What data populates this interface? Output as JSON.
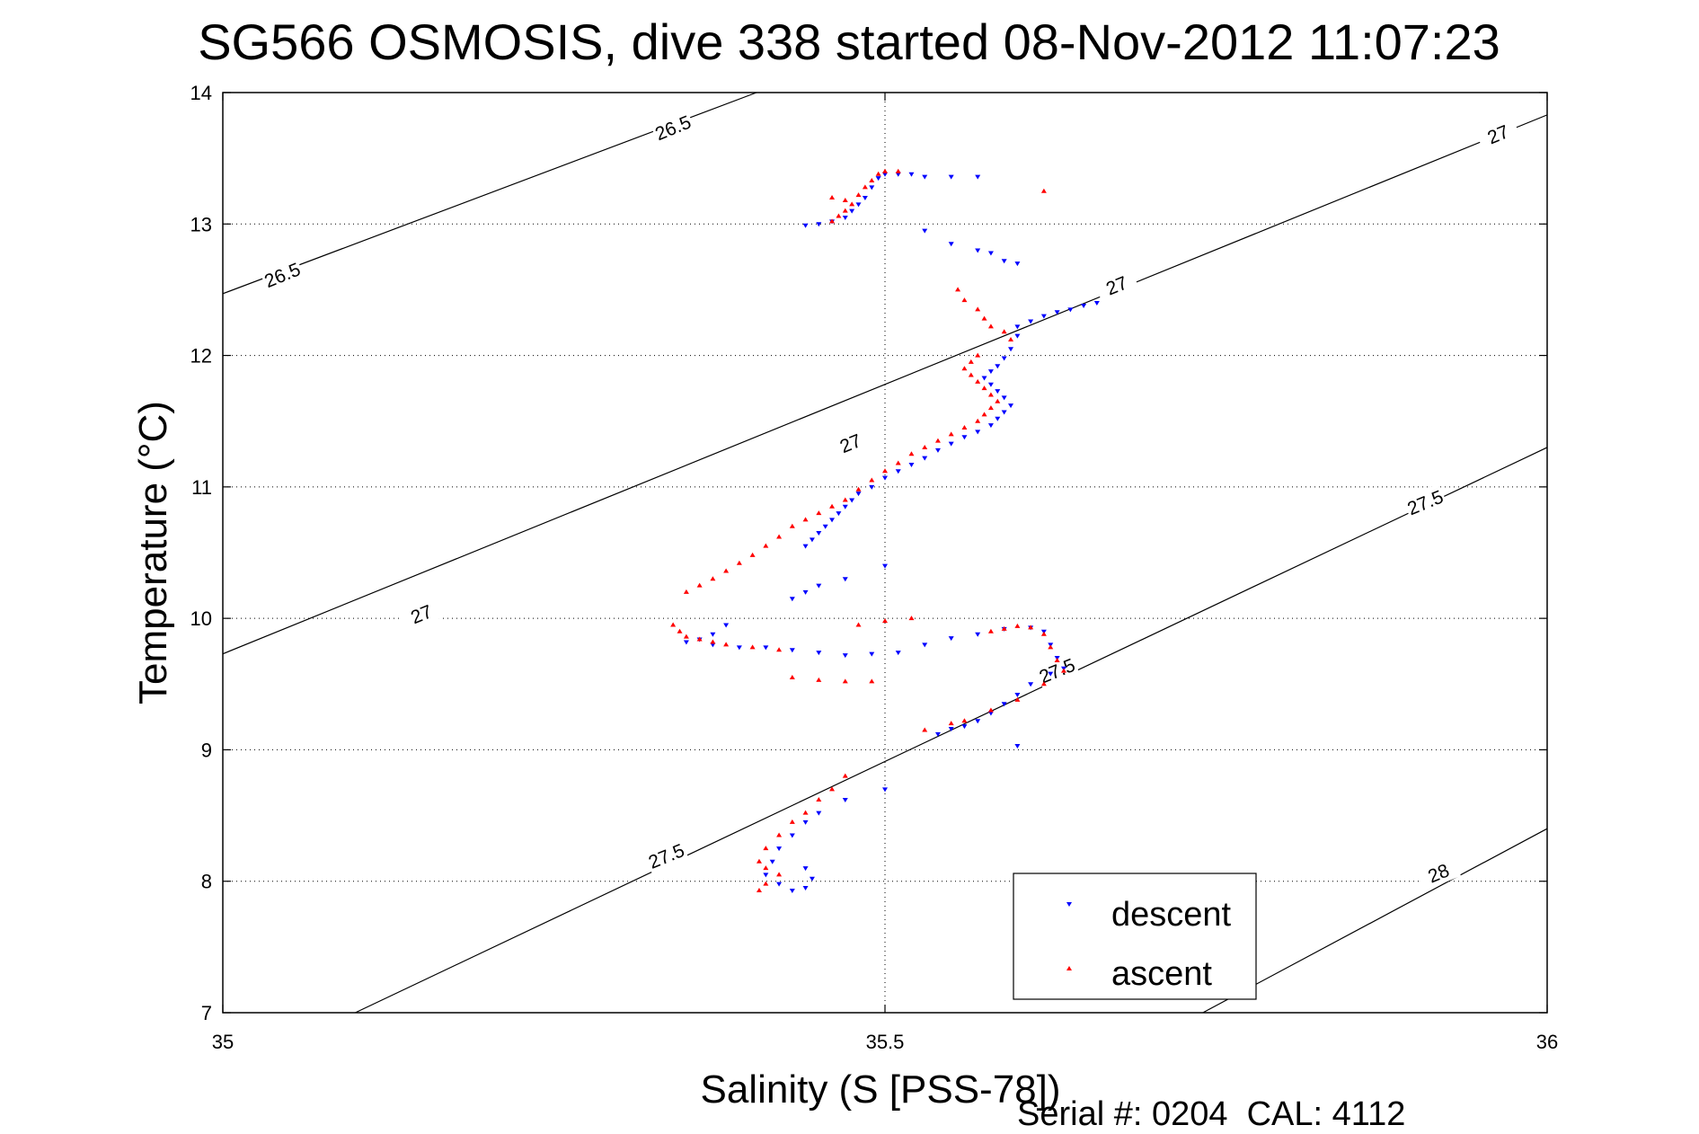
{
  "chart_data": {
    "type": "scatter",
    "title": "SG566 OSMOSIS, dive 338 started 08-Nov-2012 11:07:23",
    "xlabel": "Salinity (S [PSS-78])",
    "ylabel": "Temperature (°C)",
    "xlim": [
      35,
      36
    ],
    "ylim": [
      7,
      14
    ],
    "x_ticks": [
      "35",
      "35.5",
      "36"
    ],
    "y_ticks": [
      "7",
      "8",
      "9",
      "10",
      "11",
      "12",
      "13",
      "14"
    ],
    "grid": "dotted",
    "legend_placement": "bottom-right",
    "footnote": "Serial #: 0204  CAL: 4112",
    "density_contours": [
      {
        "label": "26.5",
        "x0": 35.0,
        "y0": 12.47,
        "x1": 35.403,
        "y1": 14.0
      },
      {
        "label": "27",
        "x0": 35.0,
        "y0": 9.73,
        "x1": 36.0,
        "y1": 13.83
      },
      {
        "label": "27.5",
        "x0": 35.1,
        "y0": 7.0,
        "x1": 36.0,
        "y1": 11.3
      },
      {
        "label": "28",
        "x0": 35.74,
        "y0": 7.0,
        "x1": 36.0,
        "y1": 8.4
      }
    ],
    "contour_labels": [
      {
        "text": "26.5",
        "x": 35.34,
        "y": 13.73
      },
      {
        "text": "26.5",
        "x": 35.045,
        "y": 12.61
      },
      {
        "text": "27",
        "x": 35.474,
        "y": 11.33
      },
      {
        "text": "27",
        "x": 35.15,
        "y": 10.03
      },
      {
        "text": "27",
        "x": 35.675,
        "y": 12.53
      },
      {
        "text": "27",
        "x": 35.963,
        "y": 13.68
      },
      {
        "text": "27.5",
        "x": 35.335,
        "y": 8.19
      },
      {
        "text": "27.5",
        "x": 35.63,
        "y": 9.6
      },
      {
        "text": "27.5",
        "x": 35.908,
        "y": 10.88
      },
      {
        "text": "28",
        "x": 35.918,
        "y": 8.06
      }
    ],
    "series": [
      {
        "name": "descent",
        "color": "#0000ff",
        "marker": "triangle-down",
        "points": [
          [
            35.44,
            12.99
          ],
          [
            35.45,
            13.0
          ],
          [
            35.46,
            13.02
          ],
          [
            35.47,
            13.05
          ],
          [
            35.475,
            13.1
          ],
          [
            35.48,
            13.15
          ],
          [
            35.485,
            13.2
          ],
          [
            35.49,
            13.28
          ],
          [
            35.495,
            13.35
          ],
          [
            35.5,
            13.38
          ],
          [
            35.51,
            13.38
          ],
          [
            35.52,
            13.38
          ],
          [
            35.53,
            13.36
          ],
          [
            35.55,
            13.36
          ],
          [
            35.57,
            13.36
          ],
          [
            35.53,
            12.95
          ],
          [
            35.55,
            12.85
          ],
          [
            35.57,
            12.8
          ],
          [
            35.58,
            12.78
          ],
          [
            35.59,
            12.72
          ],
          [
            35.6,
            12.7
          ],
          [
            35.66,
            12.4
          ],
          [
            35.65,
            12.38
          ],
          [
            35.64,
            12.35
          ],
          [
            35.63,
            12.33
          ],
          [
            35.62,
            12.3
          ],
          [
            35.61,
            12.26
          ],
          [
            35.6,
            12.22
          ],
          [
            35.6,
            12.15
          ],
          [
            35.595,
            12.05
          ],
          [
            35.59,
            11.98
          ],
          [
            35.585,
            11.92
          ],
          [
            35.58,
            11.88
          ],
          [
            35.575,
            11.83
          ],
          [
            35.58,
            11.78
          ],
          [
            35.585,
            11.73
          ],
          [
            35.59,
            11.68
          ],
          [
            35.595,
            11.62
          ],
          [
            35.59,
            11.57
          ],
          [
            35.585,
            11.52
          ],
          [
            35.58,
            11.47
          ],
          [
            35.57,
            11.42
          ],
          [
            35.56,
            11.38
          ],
          [
            35.55,
            11.33
          ],
          [
            35.54,
            11.28
          ],
          [
            35.53,
            11.22
          ],
          [
            35.52,
            11.17
          ],
          [
            35.51,
            11.12
          ],
          [
            35.5,
            11.07
          ],
          [
            35.49,
            11.0
          ],
          [
            35.48,
            10.95
          ],
          [
            35.475,
            10.9
          ],
          [
            35.47,
            10.85
          ],
          [
            35.465,
            10.8
          ],
          [
            35.46,
            10.75
          ],
          [
            35.455,
            10.7
          ],
          [
            35.45,
            10.65
          ],
          [
            35.445,
            10.6
          ],
          [
            35.44,
            10.55
          ],
          [
            35.5,
            10.4
          ],
          [
            35.47,
            10.3
          ],
          [
            35.45,
            10.25
          ],
          [
            35.44,
            10.2
          ],
          [
            35.43,
            10.15
          ],
          [
            35.38,
            9.95
          ],
          [
            35.37,
            9.88
          ],
          [
            35.36,
            9.84
          ],
          [
            35.35,
            9.82
          ],
          [
            35.37,
            9.8
          ],
          [
            35.39,
            9.78
          ],
          [
            35.41,
            9.78
          ],
          [
            35.43,
            9.76
          ],
          [
            35.45,
            9.74
          ],
          [
            35.47,
            9.72
          ],
          [
            35.49,
            9.73
          ],
          [
            35.51,
            9.74
          ],
          [
            35.53,
            9.8
          ],
          [
            35.55,
            9.85
          ],
          [
            35.57,
            9.88
          ],
          [
            35.59,
            9.92
          ],
          [
            35.61,
            9.93
          ],
          [
            35.62,
            9.9
          ],
          [
            35.625,
            9.8
          ],
          [
            35.63,
            9.7
          ],
          [
            35.635,
            9.62
          ],
          [
            35.625,
            9.58
          ],
          [
            35.61,
            9.5
          ],
          [
            35.6,
            9.42
          ],
          [
            35.59,
            9.35
          ],
          [
            35.58,
            9.28
          ],
          [
            35.57,
            9.22
          ],
          [
            35.56,
            9.18
          ],
          [
            35.55,
            9.16
          ],
          [
            35.54,
            9.12
          ],
          [
            35.6,
            9.03
          ],
          [
            35.5,
            8.7
          ],
          [
            35.47,
            8.62
          ],
          [
            35.45,
            8.52
          ],
          [
            35.44,
            8.45
          ],
          [
            35.43,
            8.35
          ],
          [
            35.42,
            8.25
          ],
          [
            35.415,
            8.15
          ],
          [
            35.41,
            8.05
          ],
          [
            35.42,
            7.98
          ],
          [
            35.43,
            7.93
          ],
          [
            35.44,
            7.95
          ],
          [
            35.445,
            8.02
          ],
          [
            35.44,
            8.1
          ]
        ]
      },
      {
        "name": "ascent",
        "color": "#ff0000",
        "marker": "triangle-up",
        "points": [
          [
            35.46,
            13.02
          ],
          [
            35.465,
            13.06
          ],
          [
            35.47,
            13.1
          ],
          [
            35.475,
            13.15
          ],
          [
            35.48,
            13.22
          ],
          [
            35.485,
            13.28
          ],
          [
            35.49,
            13.33
          ],
          [
            35.495,
            13.38
          ],
          [
            35.5,
            13.4
          ],
          [
            35.51,
            13.4
          ],
          [
            35.47,
            13.18
          ],
          [
            35.46,
            13.2
          ],
          [
            35.62,
            13.25
          ],
          [
            35.555,
            12.5
          ],
          [
            35.56,
            12.42
          ],
          [
            35.57,
            12.35
          ],
          [
            35.575,
            12.28
          ],
          [
            35.58,
            12.22
          ],
          [
            35.59,
            12.18
          ],
          [
            35.595,
            12.12
          ],
          [
            35.57,
            12.0
          ],
          [
            35.565,
            11.95
          ],
          [
            35.56,
            11.9
          ],
          [
            35.565,
            11.85
          ],
          [
            35.57,
            11.8
          ],
          [
            35.575,
            11.75
          ],
          [
            35.58,
            11.7
          ],
          [
            35.585,
            11.65
          ],
          [
            35.58,
            11.6
          ],
          [
            35.575,
            11.55
          ],
          [
            35.57,
            11.5
          ],
          [
            35.56,
            11.45
          ],
          [
            35.55,
            11.4
          ],
          [
            35.54,
            11.35
          ],
          [
            35.53,
            11.3
          ],
          [
            35.52,
            11.25
          ],
          [
            35.51,
            11.18
          ],
          [
            35.5,
            11.12
          ],
          [
            35.49,
            11.05
          ],
          [
            35.48,
            10.98
          ],
          [
            35.47,
            10.9
          ],
          [
            35.46,
            10.85
          ],
          [
            35.45,
            10.8
          ],
          [
            35.44,
            10.75
          ],
          [
            35.43,
            10.7
          ],
          [
            35.42,
            10.62
          ],
          [
            35.41,
            10.55
          ],
          [
            35.4,
            10.48
          ],
          [
            35.39,
            10.42
          ],
          [
            35.38,
            10.36
          ],
          [
            35.37,
            10.3
          ],
          [
            35.36,
            10.25
          ],
          [
            35.35,
            10.2
          ],
          [
            35.34,
            9.95
          ],
          [
            35.345,
            9.9
          ],
          [
            35.35,
            9.86
          ],
          [
            35.36,
            9.84
          ],
          [
            35.37,
            9.82
          ],
          [
            35.38,
            9.8
          ],
          [
            35.4,
            9.78
          ],
          [
            35.42,
            9.76
          ],
          [
            35.48,
            9.95
          ],
          [
            35.5,
            9.98
          ],
          [
            35.52,
            10.0
          ],
          [
            35.43,
            9.55
          ],
          [
            35.45,
            9.53
          ],
          [
            35.47,
            9.52
          ],
          [
            35.49,
            9.52
          ],
          [
            35.58,
            9.9
          ],
          [
            35.59,
            9.92
          ],
          [
            35.6,
            9.94
          ],
          [
            35.61,
            9.93
          ],
          [
            35.62,
            9.88
          ],
          [
            35.625,
            9.78
          ],
          [
            35.63,
            9.68
          ],
          [
            35.635,
            9.6
          ],
          [
            35.62,
            9.5
          ],
          [
            35.6,
            9.38
          ],
          [
            35.58,
            9.3
          ],
          [
            35.56,
            9.22
          ],
          [
            35.55,
            9.2
          ],
          [
            35.53,
            9.15
          ],
          [
            35.47,
            8.8
          ],
          [
            35.46,
            8.7
          ],
          [
            35.45,
            8.62
          ],
          [
            35.44,
            8.52
          ],
          [
            35.43,
            8.45
          ],
          [
            35.42,
            8.35
          ],
          [
            35.41,
            8.25
          ],
          [
            35.405,
            8.15
          ],
          [
            35.41,
            8.1
          ],
          [
            35.42,
            8.05
          ],
          [
            35.41,
            7.98
          ],
          [
            35.405,
            7.93
          ]
        ]
      }
    ]
  }
}
